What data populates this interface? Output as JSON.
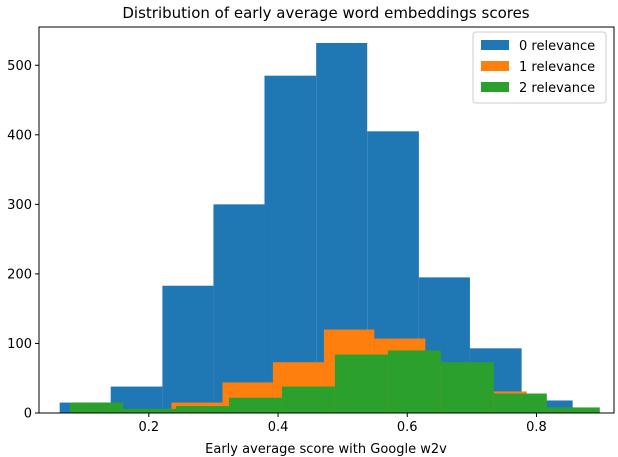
{
  "chart_data": {
    "type": "bar",
    "title": "Distribution of early average word embeddings scores",
    "xlabel": "Early average score with Google w2v",
    "ylabel": "",
    "xlim": [
      0.03,
      0.92
    ],
    "ylim": [
      0,
      555
    ],
    "xticks": [
      0.2,
      0.4,
      0.6,
      0.8
    ],
    "xtick_labels": [
      "0.2",
      "0.4",
      "0.6",
      "0.8"
    ],
    "yticks": [
      0,
      100,
      200,
      300,
      400,
      500
    ],
    "ytick_labels": [
      "0",
      "100",
      "200",
      "300",
      "400",
      "500"
    ],
    "grid": false,
    "legend_position": "top-right",
    "series": [
      {
        "name": "0 relevance",
        "color": "#1f77b4",
        "bins": [
          {
            "x0": 0.062,
            "x1": 0.141,
            "value": 15
          },
          {
            "x0": 0.141,
            "x1": 0.221,
            "value": 38
          },
          {
            "x0": 0.221,
            "x1": 0.3,
            "value": 183
          },
          {
            "x0": 0.3,
            "x1": 0.379,
            "value": 300
          },
          {
            "x0": 0.379,
            "x1": 0.459,
            "value": 485
          },
          {
            "x0": 0.459,
            "x1": 0.538,
            "value": 532
          },
          {
            "x0": 0.538,
            "x1": 0.618,
            "value": 405
          },
          {
            "x0": 0.618,
            "x1": 0.697,
            "value": 195
          },
          {
            "x0": 0.697,
            "x1": 0.777,
            "value": 93
          },
          {
            "x0": 0.777,
            "x1": 0.856,
            "value": 18
          }
        ]
      },
      {
        "name": "1 relevance",
        "color": "#ff7f0e",
        "bins": [
          {
            "x0": 0.078,
            "x1": 0.157,
            "value": 13
          },
          {
            "x0": 0.157,
            "x1": 0.235,
            "value": 5
          },
          {
            "x0": 0.235,
            "x1": 0.314,
            "value": 15
          },
          {
            "x0": 0.314,
            "x1": 0.392,
            "value": 44
          },
          {
            "x0": 0.392,
            "x1": 0.471,
            "value": 73
          },
          {
            "x0": 0.471,
            "x1": 0.549,
            "value": 120
          },
          {
            "x0": 0.549,
            "x1": 0.628,
            "value": 107
          },
          {
            "x0": 0.628,
            "x1": 0.706,
            "value": 68
          },
          {
            "x0": 0.706,
            "x1": 0.785,
            "value": 31
          },
          {
            "x0": 0.785,
            "x1": 0.863,
            "value": 8
          }
        ]
      },
      {
        "name": "2 relevance",
        "color": "#2ca02c",
        "bins": [
          {
            "x0": 0.078,
            "x1": 0.16,
            "value": 15
          },
          {
            "x0": 0.16,
            "x1": 0.242,
            "value": 6
          },
          {
            "x0": 0.242,
            "x1": 0.324,
            "value": 10
          },
          {
            "x0": 0.324,
            "x1": 0.406,
            "value": 22
          },
          {
            "x0": 0.406,
            "x1": 0.488,
            "value": 38
          },
          {
            "x0": 0.488,
            "x1": 0.57,
            "value": 84
          },
          {
            "x0": 0.57,
            "x1": 0.652,
            "value": 90
          },
          {
            "x0": 0.652,
            "x1": 0.734,
            "value": 73
          },
          {
            "x0": 0.734,
            "x1": 0.816,
            "value": 28
          },
          {
            "x0": 0.816,
            "x1": 0.898,
            "value": 8
          }
        ]
      }
    ]
  }
}
